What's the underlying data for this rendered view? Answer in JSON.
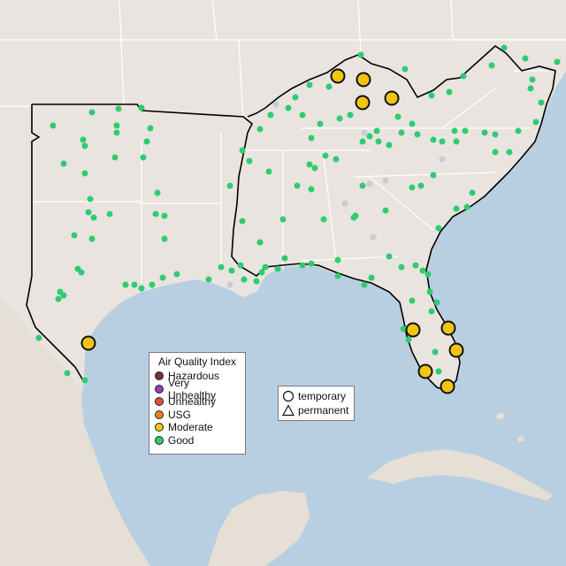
{
  "map": {
    "colors": {
      "water": "#b8cfe2",
      "land_us": "#e9e4df",
      "land_foreign": "#e6dfd6",
      "state_border": "#ffffff",
      "region_outline": "#000000",
      "good": "#2ecc71",
      "moderate": "#f1c40f",
      "no_data": "#c8ccd4"
    },
    "legend": {
      "title": "Air Quality Index",
      "items": [
        {
          "label": "Hazardous",
          "color": "#7e2f2f"
        },
        {
          "label": "Very Unhealthy",
          "color": "#8e44ad"
        },
        {
          "label": "Unhealthy",
          "color": "#e74c3c"
        },
        {
          "label": "USG",
          "color": "#e67e22"
        },
        {
          "label": "Moderate",
          "color": "#f1c40f"
        },
        {
          "label": "Good",
          "color": "#2ecc71"
        }
      ]
    },
    "monitor_types": [
      {
        "label": "temporary",
        "shape": "circle"
      },
      {
        "label": "permanent",
        "shape": "triangle"
      }
    ],
    "stations": [
      {
        "level": "moderate",
        "location": "north Kentucky"
      },
      {
        "level": "moderate",
        "location": "central Kentucky"
      },
      {
        "level": "moderate",
        "location": "south Kentucky"
      },
      {
        "level": "moderate",
        "location": "east Kentucky"
      },
      {
        "level": "moderate",
        "location": "Corpus Christi TX"
      },
      {
        "level": "moderate",
        "location": "Tampa FL"
      },
      {
        "level": "moderate",
        "location": "Orlando FL"
      },
      {
        "level": "moderate",
        "location": "West Palm Beach FL"
      },
      {
        "level": "moderate",
        "location": "Fort Myers FL"
      },
      {
        "level": "moderate",
        "location": "Miami FL"
      }
    ]
  }
}
